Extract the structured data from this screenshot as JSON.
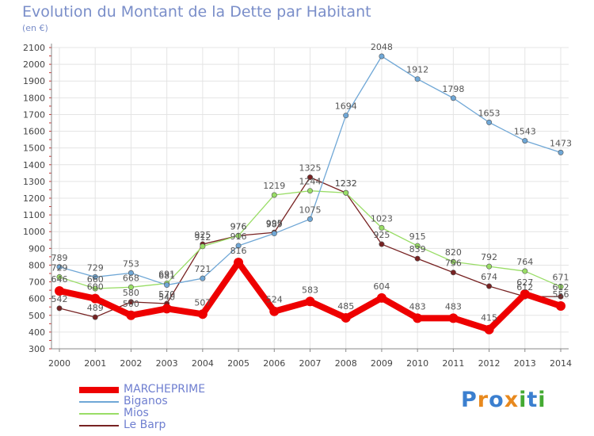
{
  "chart_data": {
    "type": "line",
    "title": "Evolution du Montant de la Dette par Habitant",
    "subtitle": "(en €)",
    "x": [
      "2000",
      "2001",
      "2002",
      "2003",
      "2004",
      "2005",
      "2006",
      "2007",
      "2008",
      "2009",
      "2010",
      "2011",
      "2012",
      "2013",
      "2014"
    ],
    "ylim": [
      300,
      2100
    ],
    "yticks": [
      300,
      400,
      500,
      600,
      700,
      800,
      900,
      1000,
      1100,
      1200,
      1300,
      1400,
      1500,
      1600,
      1700,
      1800,
      1900,
      2000,
      2100
    ],
    "grid": true,
    "legend_position": "bottom-left",
    "series": [
      {
        "name": "MARCHEPRIME",
        "color": "#ee0000",
        "values": [
          646,
          600,
          500,
          540,
          507,
          816,
          524,
          583,
          485,
          604,
          483,
          483,
          415,
          627,
          556
        ]
      },
      {
        "name": "Biganos",
        "color": "#6fa7d6",
        "values": [
          789,
          729,
          753,
          681,
          721,
          916,
          989,
          1075,
          1694,
          2048,
          1912,
          1798,
          1653,
          1543,
          1473
        ]
      },
      {
        "name": "Mios",
        "color": "#99dd66",
        "values": [
          729,
          660,
          668,
          691,
          912,
          976,
          1219,
          1244,
          1232,
          1023,
          915,
          820,
          792,
          764,
          671
        ]
      },
      {
        "name": "Le Barp",
        "color": "#772222",
        "values": [
          542,
          489,
          580,
          570,
          925,
          976,
          995,
          1325,
          1232,
          925,
          839,
          756,
          674,
          612,
          612
        ]
      }
    ]
  },
  "logo": {
    "letters": [
      {
        "ch": "P",
        "color": "#3b7fcf"
      },
      {
        "ch": "r",
        "color": "#e8891e"
      },
      {
        "ch": "o",
        "color": "#3b7fcf"
      },
      {
        "ch": "x",
        "color": "#e8891e"
      },
      {
        "ch": "i",
        "color": "#44aa33"
      },
      {
        "ch": "t",
        "color": "#3b7fcf"
      },
      {
        "ch": "i",
        "color": "#44aa33"
      }
    ]
  }
}
